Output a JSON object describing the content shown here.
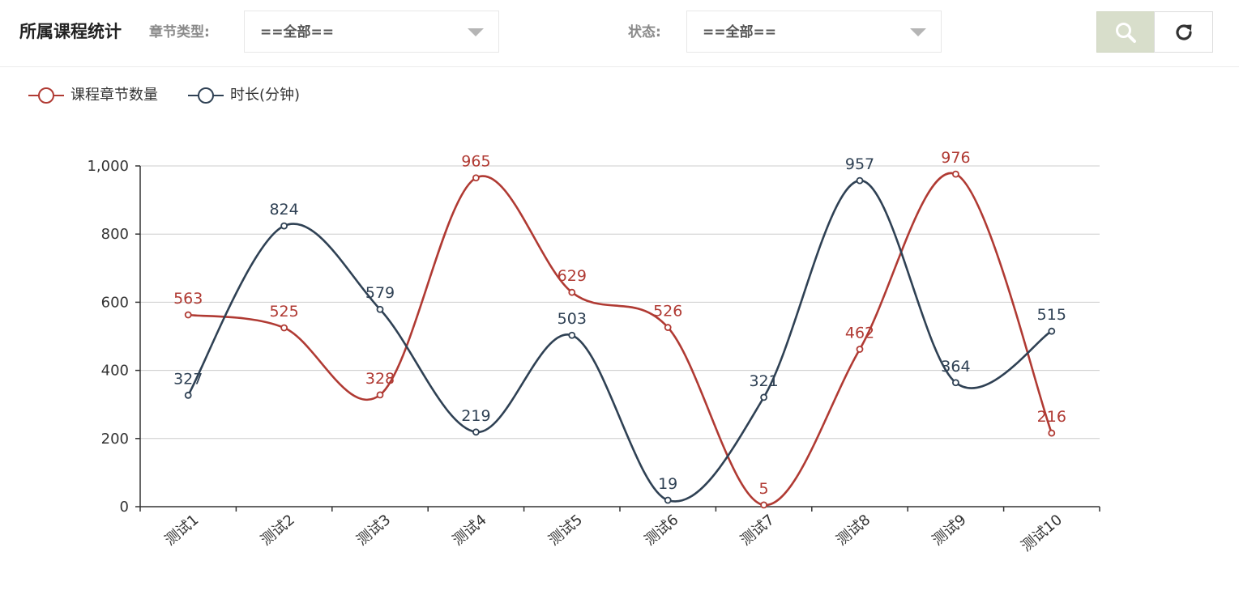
{
  "header": {
    "title": "所属课程统计",
    "chapter_type_label": "章节类型:",
    "chapter_type_value": "==全部==",
    "status_label": "状态:",
    "status_value": "==全部==",
    "search_icon": "search-icon",
    "refresh_icon": "refresh-icon"
  },
  "colors": {
    "series1": "#b03a33",
    "series2": "#2f4154",
    "axis": "#333333",
    "grid": "#cccccc",
    "search_button_bg": "#d8decb"
  },
  "legend": {
    "position": "top-left",
    "items": [
      "课程章节数量",
      "时长(分钟)"
    ]
  },
  "chart_data": {
    "type": "line",
    "smooth": true,
    "categories": [
      "测试1",
      "测试2",
      "测试3",
      "测试4",
      "测试5",
      "测试6",
      "测试7",
      "测试8",
      "测试9",
      "测试10"
    ],
    "series": [
      {
        "name": "课程章节数量",
        "values": [
          563,
          525,
          328,
          965,
          629,
          526,
          5,
          462,
          976,
          216
        ]
      },
      {
        "name": "时长(分钟)",
        "values": [
          327,
          824,
          579,
          219,
          503,
          19,
          321,
          957,
          364,
          515
        ]
      }
    ],
    "ylim": [
      0,
      1000
    ],
    "yticks": [
      "0",
      "200",
      "400",
      "600",
      "800",
      "1,000"
    ],
    "data_labels": true,
    "grid": true
  }
}
